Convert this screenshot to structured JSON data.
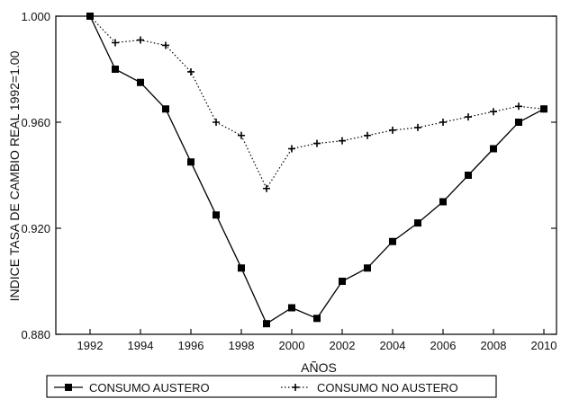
{
  "chart_data": {
    "type": "line",
    "title": "",
    "xlabel": "AÑOS",
    "ylabel": "INDICE TASA DE CAMBIO REAL 1992=1.00",
    "xlim": [
      1992,
      2010
    ],
    "ylim": [
      0.88,
      1.0
    ],
    "x_ticks": [
      "1992",
      "1994",
      "1996",
      "1998",
      "2000",
      "2002",
      "2004",
      "2006",
      "2008",
      "2010"
    ],
    "y_ticks": [
      "1.000",
      "0.960",
      "0.920",
      "0.880"
    ],
    "grid": false,
    "legend_position": "bottom",
    "series": [
      {
        "name": "CONSUMO AUSTERO",
        "marker": "square",
        "line": "solid",
        "color": "#000000",
        "x": [
          1992,
          1993,
          1994,
          1995,
          1996,
          1997,
          1998,
          1999,
          2000,
          2001,
          2002,
          2003,
          2004,
          2005,
          2006,
          2007,
          2008,
          2009,
          2010
        ],
        "values": [
          1.0,
          0.98,
          0.975,
          0.965,
          0.945,
          0.925,
          0.905,
          0.884,
          0.89,
          0.886,
          0.9,
          0.905,
          0.915,
          0.922,
          0.93,
          0.94,
          0.95,
          0.96,
          0.965
        ]
      },
      {
        "name": "CONSUMO NO AUSTERO",
        "marker": "plus",
        "line": "dotted",
        "color": "#000000",
        "x": [
          1992,
          1993,
          1994,
          1995,
          1996,
          1997,
          1998,
          1999,
          2000,
          2001,
          2002,
          2003,
          2004,
          2005,
          2006,
          2007,
          2008,
          2009,
          2010
        ],
        "values": [
          1.0,
          0.99,
          0.991,
          0.989,
          0.979,
          0.96,
          0.955,
          0.935,
          0.95,
          0.952,
          0.953,
          0.955,
          0.957,
          0.958,
          0.96,
          0.962,
          0.964,
          0.966,
          0.965
        ]
      }
    ]
  }
}
